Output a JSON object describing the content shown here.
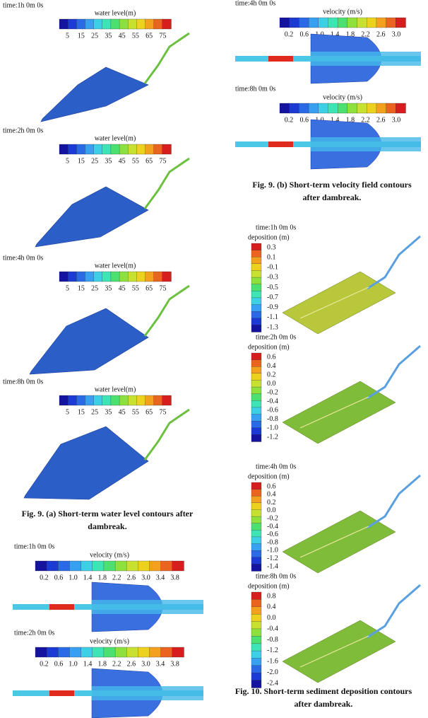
{
  "water_level_panels": [
    {
      "time": "time:1h  0m  0s",
      "legend_title": "water level(m)",
      "ticks": [
        "5",
        "15",
        "25",
        "35",
        "45",
        "55",
        "65",
        "75"
      ]
    },
    {
      "time": "time:2h  0m  0s",
      "legend_title": "water level(m)",
      "ticks": [
        "5",
        "15",
        "25",
        "35",
        "45",
        "55",
        "65",
        "75"
      ]
    },
    {
      "time": "time:4h  0m  0s",
      "legend_title": "water level(m)",
      "ticks": [
        "5",
        "15",
        "25",
        "35",
        "45",
        "55",
        "65",
        "75"
      ]
    },
    {
      "time": "time:8h  0m  0s",
      "legend_title": "water level(m)",
      "ticks": [
        "5",
        "15",
        "25",
        "35",
        "45",
        "55",
        "65",
        "75"
      ]
    }
  ],
  "caption_9a": [
    "Fig. 9. (a) Short-term water level contours after",
    "dambreak."
  ],
  "velocity_panels": [
    {
      "time": "time:1h  0m  0s",
      "legend_title": "velocity (m/s)",
      "ticks": [
        "0.2",
        "0.6",
        "1.0",
        "1.4",
        "1.8",
        "2.2",
        "2.6",
        "3.0",
        "3.4",
        "3.8"
      ]
    },
    {
      "time": "time:2h  0m  0s",
      "legend_title": "velocity (m/s)",
      "ticks": [
        "0.2",
        "0.6",
        "1.0",
        "1.4",
        "1.8",
        "2.2",
        "2.6",
        "3.0",
        "3.4",
        "3.8"
      ]
    },
    {
      "time": "time:4h  0m  0s",
      "legend_title": "velocity (m/s)",
      "ticks": [
        "0.2",
        "0.6",
        "1.0",
        "1.4",
        "1.8",
        "2.2",
        "2.6",
        "3.0"
      ]
    },
    {
      "time": "time:8h  0m  0s",
      "legend_title": "velocity (m/s)",
      "ticks": [
        "0.2",
        "0.6",
        "1.0",
        "1.4",
        "1.8",
        "2.2",
        "2.6",
        "3.0"
      ]
    }
  ],
  "caption_9b": [
    "Fig. 9. (b) Short-term velocity field contours",
    "after dambreak."
  ],
  "deposition_panels": [
    {
      "time": "time:1h  0m  0s",
      "legend_title": "deposition (m)",
      "ticks": [
        "0.3",
        "0.1",
        "-0.1",
        "-0.3",
        "-0.5",
        "-0.7",
        "-0.9",
        "-1.1",
        "-1.3"
      ]
    },
    {
      "time": "time:2h  0m  0s",
      "legend_title": "deposition (m)",
      "ticks": [
        "0.6",
        "0.4",
        "0.2",
        "0.0",
        "-0.2",
        "-0.4",
        "-0.6",
        "-0.8",
        "-1.0",
        "-1.2"
      ]
    },
    {
      "time": "time:4h  0m  0s",
      "legend_title": "deposition (m)",
      "ticks": [
        "0.6",
        "0.4",
        "0.2",
        "0.0",
        "-0.2",
        "-0.4",
        "-0.6",
        "-0.8",
        "-1.0",
        "-1.2",
        "-1.4"
      ]
    },
    {
      "time": "time:8h  0m  0s",
      "legend_title": "deposition (m)",
      "ticks": [
        "0.8",
        "0.4",
        "0.0",
        "-0.4",
        "-0.8",
        "-1.2",
        "-1.6",
        "-2.0",
        "-2.4"
      ]
    }
  ],
  "caption_10": [
    "Fig. 10. Short-term sediment deposition contours",
    "after dambreak."
  ]
}
